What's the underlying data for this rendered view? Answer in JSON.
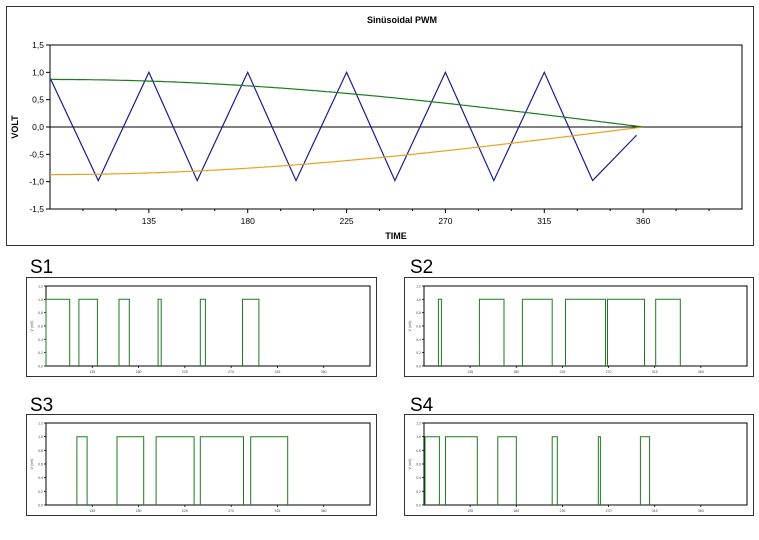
{
  "chart_data": [
    {
      "type": "line",
      "title": "Sinüsoidal PWM",
      "xlabel": "TIME",
      "ylabel": "VOLT",
      "xlim": [
        90,
        405
      ],
      "ylim": [
        -1.5,
        1.5
      ],
      "x_ticks": [
        "135",
        "180",
        "225",
        "270",
        "315",
        "360"
      ],
      "y_ticks": [
        "1,5",
        "1,0",
        "0,5",
        "0,0",
        "-0,5",
        "-1,0",
        "-1,5"
      ],
      "grid": false,
      "series": [
        {
          "color": "#1a1a8c",
          "shape": "triangle",
          "x": [
            90,
            112,
            135,
            157,
            180,
            202,
            225,
            247,
            270,
            292,
            315,
            337,
            357
          ],
          "y": [
            0.9,
            -0.98,
            1.0,
            -0.98,
            1.0,
            -0.98,
            1.0,
            -0.98,
            1.0,
            -0.98,
            1.0,
            -0.98,
            -0.15
          ]
        },
        {
          "color": "#e8a21c",
          "shape": "sine",
          "x": [
            90,
            120,
            150,
            180,
            210,
            240,
            270,
            300,
            330,
            360
          ],
          "y": [
            -0.87,
            -0.76,
            -0.47,
            0.0,
            0.45,
            0.76,
            0.87,
            0.76,
            0.45,
            0.0
          ]
        },
        {
          "color": "#1e7a1e",
          "shape": "sine",
          "x": [
            90,
            120,
            150,
            180,
            210,
            240,
            270,
            300,
            330,
            360
          ],
          "y": [
            0.87,
            0.76,
            0.45,
            0.0,
            -0.45,
            -0.76,
            -0.87,
            -0.76,
            -0.45,
            0.0
          ]
        }
      ]
    },
    {
      "type": "line",
      "title": "S1",
      "color": "#1e7a1e",
      "xlim": [
        90,
        405
      ],
      "ylim": [
        0,
        1.2
      ],
      "x_ticks": [
        "135",
        "180",
        "225",
        "270",
        "315",
        "360"
      ],
      "y_ticks": [
        "1.2",
        "1.0",
        "0.8",
        "0.6",
        "0.4",
        "0.2",
        "0.0"
      ],
      "y_axis_label": "V (mV)",
      "high_intervals": [
        [
          90,
          113
        ],
        [
          122,
          140
        ],
        [
          161,
          171
        ],
        [
          199,
          202
        ],
        [
          240,
          245
        ],
        [
          281,
          297
        ]
      ]
    },
    {
      "type": "line",
      "title": "S2",
      "color": "#1e7a1e",
      "xlim": [
        90,
        405
      ],
      "ylim": [
        0,
        1.2
      ],
      "x_ticks": [
        "135",
        "180",
        "225",
        "270",
        "315",
        "360"
      ],
      "y_ticks": [
        "1.2",
        "1.0",
        "0.8",
        "0.6",
        "0.4",
        "0.2",
        "0.0"
      ],
      "y_axis_label": "V (mV)",
      "high_intervals": [
        [
          104,
          107
        ],
        [
          144,
          168
        ],
        [
          186,
          215
        ],
        [
          228,
          267
        ],
        [
          269,
          305
        ],
        [
          316,
          340
        ]
      ]
    },
    {
      "type": "line",
      "title": "S3",
      "color": "#1e7a1e",
      "xlim": [
        90,
        405
      ],
      "ylim": [
        0,
        1.2
      ],
      "x_ticks": [
        "135",
        "180",
        "225",
        "270",
        "315",
        "360"
      ],
      "y_ticks": [
        "1.2",
        "1.0",
        "0.8",
        "0.6",
        "0.4",
        "0.2",
        "0.0"
      ],
      "y_axis_label": "V (mV)",
      "high_intervals": [
        [
          120,
          130
        ],
        [
          159,
          185
        ],
        [
          197,
          234
        ],
        [
          240,
          282
        ],
        [
          289,
          325
        ]
      ]
    },
    {
      "type": "line",
      "title": "S4",
      "color": "#1e7a1e",
      "xlim": [
        90,
        405
      ],
      "ylim": [
        0,
        1.2
      ],
      "x_ticks": [
        "135",
        "180",
        "225",
        "270",
        "315",
        "360"
      ],
      "y_ticks": [
        "1.2",
        "1.0",
        "0.8",
        "0.6",
        "0.4",
        "0.2",
        "0.0"
      ],
      "y_axis_label": "V (mV)",
      "high_intervals": [
        [
          91,
          105
        ],
        [
          111,
          142
        ],
        [
          162,
          180
        ],
        [
          215,
          220
        ],
        [
          260,
          262
        ],
        [
          301,
          310
        ]
      ]
    }
  ]
}
